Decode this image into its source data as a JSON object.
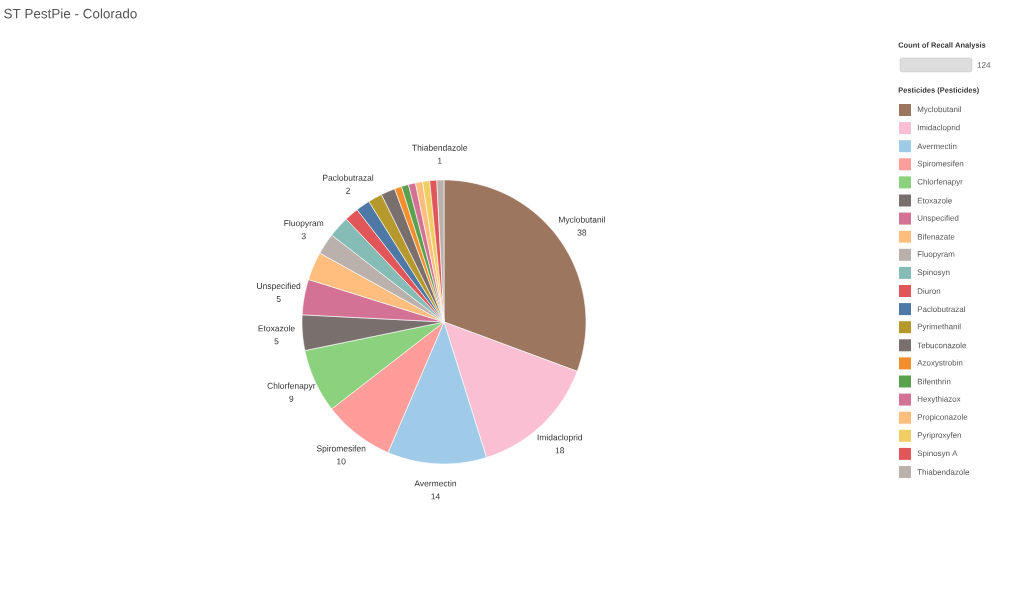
{
  "chart_data": {
    "type": "pie",
    "title": "ST PestPie - Colorado",
    "legend_title": "Pesticides (Pesticides)",
    "annotations": [
      "Count of Recall Analysis",
      "124"
    ],
    "legend": "top right",
    "categories": [
      "Myclobutanil",
      "Imidacloprid",
      "Avermectin",
      "Spiromesifen",
      "Chlorfenapyr",
      "Etoxazole",
      "Unspecified",
      "Bifenazate",
      "Fluopyram",
      "Spinosyn",
      "Diuron",
      "Paclobutrazal",
      "Pyrimethanil",
      "Tebuconazole",
      "Azoxystrobin",
      "Bifenthrin",
      "Hexythiazox",
      "Propiconazole",
      "Pyriproxyfen",
      "Spinosyn A",
      "Thiabendazole"
    ],
    "values": [
      38,
      18,
      14,
      10,
      9,
      5,
      5,
      4,
      3,
      3,
      2,
      2,
      2,
      2,
      1,
      1,
      1,
      1,
      1,
      1,
      1
    ],
    "value_labels": [
      "38",
      "18",
      "14",
      "10",
      "9",
      "5",
      "5",
      null,
      "3",
      null,
      null,
      "2",
      null,
      null,
      null,
      null,
      null,
      null,
      null,
      null,
      "1"
    ],
    "colors": [
      "#9d7660",
      "#fabfd2",
      "#a0cbe8",
      "#ff9d9a",
      "#8cd17d",
      "#79706e",
      "#d37295",
      "#ffbe7d",
      "#bab0ac",
      "#86bcb6",
      "#e15759",
      "#4e79a7",
      "#b6992d",
      "#79706e",
      "#f28e2b",
      "#59a14f",
      "#d37295",
      "#ffbe7d",
      "#f1ce63",
      "#e15759",
      "#bab0ac"
    ]
  }
}
